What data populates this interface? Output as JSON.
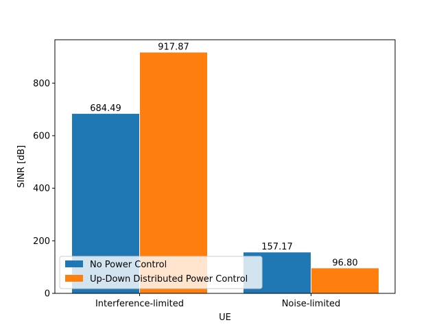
{
  "chart_data": {
    "type": "bar",
    "xlabel": "UE",
    "ylabel": "SINR [dB]",
    "categories": [
      "Interference-limited",
      "Noise-limited"
    ],
    "ylim": [
      0,
      965
    ],
    "yticks": [
      0,
      200,
      400,
      600,
      800
    ],
    "grid": false,
    "legend_position": "lower-left",
    "series": [
      {
        "name": "No Power Control",
        "color": "#1f77b4",
        "values": [
          684.49,
          157.17
        ],
        "labels": [
          "684.49",
          "157.17"
        ]
      },
      {
        "name": "Up-Down Distributed Power Control",
        "color": "#ff7f0e",
        "values": [
          917.87,
          96.8
        ],
        "labels": [
          "917.87",
          "96.80"
        ]
      }
    ]
  }
}
